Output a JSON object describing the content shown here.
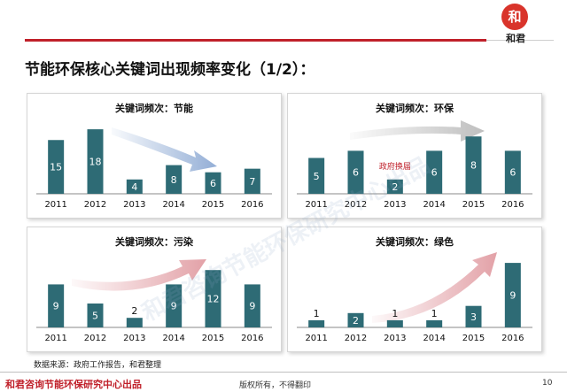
{
  "logo": {
    "mark": "和",
    "name": "和君"
  },
  "page_title": "节能环保核心关键词出现频率变化（1/2）：",
  "colors": {
    "bar": "#2e6b75",
    "accent": "#c0202a",
    "arrow_blue": "#6f93c8",
    "arrow_gray": "#a9a9a9",
    "arrow_red": "#d9828a"
  },
  "chart_data": [
    {
      "type": "bar",
      "title": "关键词频次：节能",
      "categories": [
        "2011",
        "2012",
        "2013",
        "2014",
        "2015",
        "2016"
      ],
      "values": [
        15,
        18,
        4,
        8,
        6,
        7
      ],
      "ylim": [
        0,
        20
      ],
      "trend_arrow": "down",
      "arrow_color": "blue",
      "annotation": ""
    },
    {
      "type": "bar",
      "title": "关键词频次：环保",
      "categories": [
        "2011",
        "2012",
        "2013",
        "2014",
        "2015",
        "2016"
      ],
      "values": [
        5,
        6,
        2,
        6,
        8,
        6
      ],
      "ylim": [
        0,
        10
      ],
      "trend_arrow": "flat",
      "arrow_color": "gray",
      "annotation": "政府换届"
    },
    {
      "type": "bar",
      "title": "关键词频次：污染",
      "categories": [
        "2011",
        "2012",
        "2013",
        "2014",
        "2015",
        "2016"
      ],
      "values": [
        9,
        5,
        2,
        9,
        12,
        9
      ],
      "ylim": [
        0,
        15
      ],
      "trend_arrow": "up-slight",
      "arrow_color": "red",
      "annotation": ""
    },
    {
      "type": "bar",
      "title": "关键词频次：绿色",
      "categories": [
        "2011",
        "2012",
        "2013",
        "2014",
        "2015",
        "2016"
      ],
      "values": [
        1,
        2,
        1,
        1,
        3,
        9
      ],
      "ylim": [
        0,
        10
      ],
      "trend_arrow": "up",
      "arrow_color": "red",
      "annotation": ""
    }
  ],
  "source": "数据来源：政府工作报告，和君整理",
  "footer": {
    "org": "和君咨询节能环保研究中心出品",
    "copyright": "版权所有，不得翻印",
    "page": "10"
  },
  "watermark": "和君咨询节能环保研究中心出品"
}
